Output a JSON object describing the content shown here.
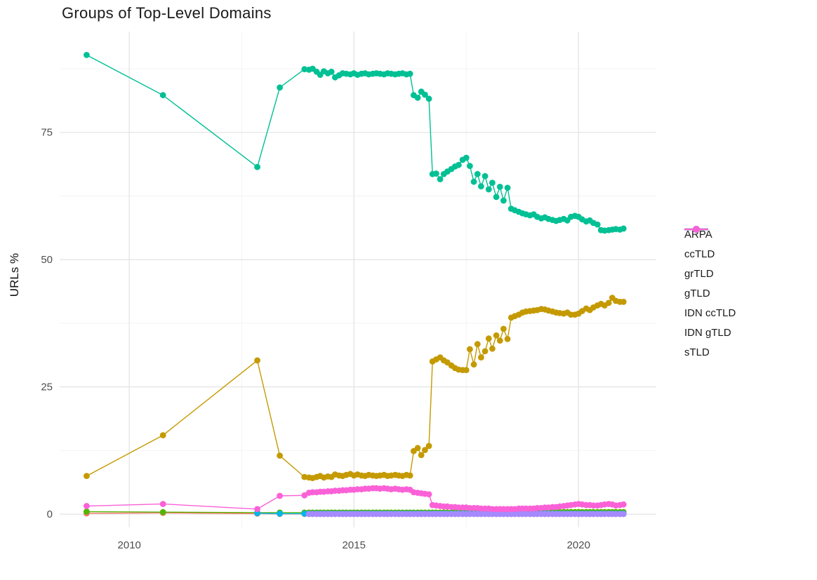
{
  "chart_data": {
    "type": "line",
    "title": "Groups of Top-Level Domains",
    "xlabel": "",
    "ylabel": "URLs %",
    "grid": "major+minor",
    "legend_position": "right",
    "colors": {
      "grid_major": "#E4E4E4",
      "grid_minor": "#F1F1F1",
      "tick_text": "#4D4D4D",
      "title_text": "#1A1A1A"
    },
    "x_axis": {
      "tick_labels": [
        "2010",
        "2015",
        "2020"
      ],
      "ticks": [
        2010,
        2015,
        2020
      ],
      "minor_ticks": [
        2012.5,
        2017.5
      ],
      "range": [
        2008.45,
        2021.73
      ]
    },
    "y_axis": {
      "tick_labels": [
        "0",
        "25",
        "50",
        "75"
      ],
      "ticks": [
        0,
        25,
        50,
        75
      ],
      "minor_ticks": [
        12.5,
        37.5,
        62.5,
        87.5
      ],
      "range": [
        -2.6,
        94.8
      ]
    },
    "x_dense": [
      2013.35,
      2013.9,
      2014.0,
      2014.08,
      2014.17,
      2014.25,
      2014.33,
      2014.42,
      2014.5,
      2014.58,
      2014.67,
      2014.75,
      2014.83,
      2014.92,
      2015.0,
      2015.08,
      2015.17,
      2015.25,
      2015.33,
      2015.42,
      2015.5,
      2015.58,
      2015.67,
      2015.75,
      2015.83,
      2015.92,
      2016.0,
      2016.08,
      2016.17,
      2016.25,
      2016.33,
      2016.42,
      2016.5,
      2016.58,
      2016.67,
      2016.75,
      2016.83,
      2016.92,
      2017.0,
      2017.08,
      2017.17,
      2017.25,
      2017.33,
      2017.42,
      2017.5,
      2017.58,
      2017.67,
      2017.75,
      2017.83,
      2017.92,
      2018.0,
      2018.08,
      2018.17,
      2018.25,
      2018.33,
      2018.42,
      2018.5,
      2018.58,
      2018.67,
      2018.75,
      2018.83,
      2018.92,
      2019.0,
      2019.08,
      2019.17,
      2019.25,
      2019.33,
      2019.42,
      2019.5,
      2019.58,
      2019.67,
      2019.75,
      2019.83,
      2019.92,
      2020.0,
      2020.08,
      2020.17,
      2020.25,
      2020.33,
      2020.42,
      2020.5,
      2020.58,
      2020.67,
      2020.75,
      2020.83,
      2020.92,
      2021.0
    ],
    "series": [
      {
        "name": "ARPA",
        "color": "#F8766D",
        "early": [
          [
            2009.05,
            0.15
          ],
          [
            2010.75,
            0.25
          ],
          [
            2012.85,
            0.1
          ]
        ],
        "y_dense": [
          0.05,
          0.05,
          0.05,
          0.05,
          0.05,
          0.05,
          0.05,
          0.05,
          0.05,
          0.05,
          0.05,
          0.05,
          0.05,
          0.05,
          0.05,
          0.05,
          0.05,
          0.05,
          0.05,
          0.05,
          0.05,
          0.05,
          0.05,
          0.05,
          0.05,
          0.05,
          0.05,
          0.05,
          0.05,
          0.05,
          0.05,
          0.05,
          0.05,
          0.05,
          0.05,
          0.05,
          0.05,
          0.05,
          0.05,
          0.05,
          0.05,
          0.05,
          0.05,
          0.05,
          0.05,
          0.05,
          0.05,
          0.05,
          0.05,
          0.05,
          0.05,
          0.05,
          0.05,
          0.05,
          0.05,
          0.05,
          0.05,
          0.05,
          0.05,
          0.05,
          0.05,
          0.05,
          0.05,
          0.05,
          0.05,
          0.05,
          0.05,
          0.05,
          0.05,
          0.05,
          0.05,
          0.05,
          0.05,
          0.05,
          0.05,
          0.05,
          0.05,
          0.05,
          0.05,
          0.05,
          0.05,
          0.05,
          0.05,
          0.05,
          0.05,
          0.05,
          0.05
        ]
      },
      {
        "name": "ccTLD",
        "color": "#C49A00",
        "early": [
          [
            2009.05,
            7.5
          ],
          [
            2010.75,
            15.5
          ],
          [
            2012.85,
            30.2
          ]
        ],
        "y_dense": [
          11.5,
          7.3,
          7.2,
          7.1,
          7.3,
          7.5,
          7.2,
          7.4,
          7.3,
          7.8,
          7.6,
          7.5,
          7.7,
          7.9,
          7.6,
          7.8,
          7.6,
          7.5,
          7.7,
          7.6,
          7.5,
          7.6,
          7.7,
          7.5,
          7.6,
          7.7,
          7.6,
          7.5,
          7.7,
          7.6,
          12.4,
          13.0,
          11.6,
          12.6,
          13.4,
          30.0,
          30.4,
          30.8,
          30.2,
          29.8,
          29.2,
          28.7,
          28.4,
          28.3,
          28.3,
          32.4,
          29.4,
          33.4,
          30.8,
          32.0,
          34.5,
          32.5,
          35.1,
          34.1,
          36.4,
          34.4,
          38.6,
          38.9,
          39.2,
          39.6,
          39.8,
          39.9,
          40.0,
          40.1,
          40.3,
          40.2,
          40.0,
          39.8,
          39.6,
          39.5,
          39.4,
          39.6,
          39.2,
          39.2,
          39.4,
          39.9,
          40.4,
          40.1,
          40.6,
          41.0,
          41.3,
          41.0,
          41.5,
          42.5,
          41.9,
          41.7,
          41.7
        ]
      },
      {
        "name": "grTLD",
        "color": "#53B400",
        "early": [
          [
            2009.05,
            0.5
          ],
          [
            2010.75,
            0.4
          ],
          [
            2012.85,
            0.3
          ]
        ],
        "y_dense": [
          0.3,
          0.3,
          0.3,
          0.3,
          0.3,
          0.3,
          0.3,
          0.3,
          0.3,
          0.3,
          0.3,
          0.3,
          0.3,
          0.3,
          0.3,
          0.3,
          0.3,
          0.3,
          0.3,
          0.3,
          0.3,
          0.3,
          0.3,
          0.3,
          0.3,
          0.3,
          0.3,
          0.3,
          0.3,
          0.3,
          0.3,
          0.3,
          0.3,
          0.3,
          0.3,
          0.3,
          0.3,
          0.3,
          0.3,
          0.3,
          0.3,
          0.4,
          0.4,
          0.4,
          0.4,
          0.4,
          0.4,
          0.4,
          0.4,
          0.4,
          0.4,
          0.4,
          0.4,
          0.4,
          0.4,
          0.4,
          0.4,
          0.4,
          0.4,
          0.4,
          0.4,
          0.4,
          0.4,
          0.4,
          0.4,
          0.4,
          0.4,
          0.4,
          0.4,
          0.4,
          0.4,
          0.4,
          0.4,
          0.4,
          0.4,
          0.4,
          0.4,
          0.4,
          0.4,
          0.4,
          0.4,
          0.4,
          0.4,
          0.4,
          0.4,
          0.4,
          0.4
        ]
      },
      {
        "name": "gTLD",
        "color": "#00C094",
        "early": [
          [
            2009.05,
            90.2
          ],
          [
            2010.75,
            82.3
          ],
          [
            2012.85,
            68.2
          ]
        ],
        "y_dense": [
          83.8,
          87.4,
          87.3,
          87.5,
          86.9,
          86.3,
          87.0,
          86.6,
          86.9,
          85.8,
          86.2,
          86.6,
          86.5,
          86.4,
          86.6,
          86.3,
          86.5,
          86.6,
          86.4,
          86.5,
          86.6,
          86.5,
          86.4,
          86.6,
          86.5,
          86.4,
          86.5,
          86.6,
          86.4,
          86.5,
          82.3,
          81.8,
          83.0,
          82.4,
          81.6,
          66.8,
          66.9,
          65.8,
          66.8,
          67.3,
          67.8,
          68.3,
          68.6,
          69.6,
          70.0,
          68.4,
          65.3,
          66.8,
          64.4,
          66.4,
          63.8,
          65.1,
          62.3,
          64.3,
          61.6,
          64.1,
          60.0,
          59.7,
          59.4,
          59.1,
          58.9,
          58.7,
          58.9,
          58.4,
          58.1,
          58.3,
          58.0,
          57.8,
          57.6,
          57.8,
          58.0,
          57.7,
          58.4,
          58.6,
          58.4,
          57.9,
          57.5,
          57.7,
          57.2,
          56.9,
          55.8,
          55.7,
          55.8,
          55.9,
          56.0,
          55.9,
          56.1
        ]
      },
      {
        "name": "IDN ccTLD",
        "color": "#00B6EB",
        "early": [
          [
            2012.85,
            0.2
          ]
        ],
        "y_dense": [
          0.1,
          0.1,
          0.1,
          0.1,
          0.1,
          0.1,
          0.1,
          0.1,
          0.1,
          0.1,
          0.1,
          0.1,
          0.1,
          0.1,
          0.1,
          0.1,
          0.1,
          0.1,
          0.1,
          0.1,
          0.1,
          0.1,
          0.1,
          0.1,
          0.1,
          0.1,
          0.1,
          0.1,
          0.1,
          0.1,
          0.1,
          0.1,
          0.1,
          0.1,
          0.1,
          0.1,
          0.1,
          0.1,
          0.1,
          0.1,
          0.1,
          0.1,
          0.1,
          0.1,
          0.1,
          0.1,
          0.1,
          0.1,
          0.1,
          0.1,
          0.1,
          0.1,
          0.1,
          0.1,
          0.1,
          0.1,
          0.1,
          0.1,
          0.1,
          0.1,
          0.1,
          0.1,
          0.1,
          0.1,
          0.1,
          0.1,
          0.1,
          0.1,
          0.1,
          0.1,
          0.1,
          0.1,
          0.1,
          0.1,
          0.1,
          0.1,
          0.1,
          0.1,
          0.1,
          0.1,
          0.1,
          0.1,
          0.1,
          0.1,
          0.1,
          0.1,
          0.1
        ]
      },
      {
        "name": "IDN gTLD",
        "color": "#A58AFF",
        "early": [],
        "y_dense": [
          null,
          null,
          0.03,
          0.03,
          0.03,
          0.03,
          0.03,
          0.03,
          0.03,
          0.03,
          0.03,
          0.03,
          0.03,
          0.03,
          0.03,
          0.03,
          0.03,
          0.03,
          0.03,
          0.03,
          0.03,
          0.03,
          0.03,
          0.03,
          0.03,
          0.03,
          0.03,
          0.03,
          0.03,
          0.03,
          0.03,
          0.03,
          0.03,
          0.03,
          0.03,
          0.03,
          0.03,
          0.03,
          0.03,
          0.03,
          0.03,
          0.03,
          0.03,
          0.03,
          0.03,
          0.03,
          0.03,
          0.03,
          0.03,
          0.03,
          0.03,
          0.03,
          0.03,
          0.03,
          0.03,
          0.03,
          0.03,
          0.03,
          0.03,
          0.03,
          0.03,
          0.03,
          0.03,
          0.03,
          0.03,
          0.03,
          0.03,
          0.03,
          0.03,
          0.03,
          0.03,
          0.03,
          0.03,
          0.03,
          0.03,
          0.03,
          0.03,
          0.03,
          0.03,
          0.03,
          0.03,
          0.03,
          0.03,
          0.03,
          0.03,
          0.03,
          0.03
        ]
      },
      {
        "name": "sTLD",
        "color": "#FB61D7",
        "early": [
          [
            2009.05,
            1.6
          ],
          [
            2010.75,
            2.0
          ],
          [
            2012.85,
            1.0
          ]
        ],
        "y_dense": [
          3.6,
          3.7,
          4.2,
          4.3,
          4.3,
          4.4,
          4.4,
          4.5,
          4.5,
          4.6,
          4.6,
          4.7,
          4.7,
          4.8,
          4.8,
          4.9,
          4.9,
          5.0,
          5.0,
          5.1,
          5.1,
          5.0,
          5.1,
          5.0,
          4.9,
          5.0,
          4.9,
          4.8,
          4.9,
          4.8,
          4.3,
          4.2,
          4.1,
          4.0,
          3.9,
          1.8,
          1.7,
          1.6,
          1.5,
          1.5,
          1.4,
          1.4,
          1.3,
          1.3,
          1.3,
          1.2,
          1.2,
          1.2,
          1.1,
          1.1,
          1.1,
          1.0,
          1.0,
          1.0,
          1.0,
          1.0,
          1.0,
          1.0,
          1.1,
          1.1,
          1.1,
          1.1,
          1.1,
          1.2,
          1.2,
          1.3,
          1.3,
          1.4,
          1.4,
          1.5,
          1.6,
          1.7,
          1.8,
          1.9,
          2.0,
          1.9,
          1.8,
          1.8,
          1.7,
          1.7,
          1.8,
          1.9,
          2.0,
          1.9,
          1.7,
          1.8,
          1.9
        ]
      }
    ]
  }
}
